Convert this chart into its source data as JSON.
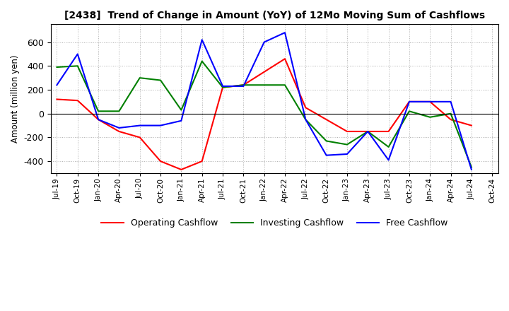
{
  "title": "[2438]  Trend of Change in Amount (YoY) of 12Mo Moving Sum of Cashflows",
  "ylabel": "Amount (million yen)",
  "x_labels": [
    "Jul-19",
    "Oct-19",
    "Jan-20",
    "Apr-20",
    "Jul-20",
    "Oct-20",
    "Jan-21",
    "Apr-21",
    "Jul-21",
    "Oct-21",
    "Jan-22",
    "Apr-22",
    "Jul-22",
    "Oct-22",
    "Jan-23",
    "Apr-23",
    "Jul-23",
    "Oct-23",
    "Jan-24",
    "Apr-24",
    "Jul-24",
    "Oct-24"
  ],
  "operating": [
    120,
    110,
    -50,
    -150,
    -200,
    -400,
    -470,
    -400,
    220,
    240,
    350,
    460,
    50,
    -50,
    -150,
    -150,
    -150,
    100,
    100,
    -50,
    -100,
    null
  ],
  "investing": [
    390,
    400,
    20,
    20,
    300,
    280,
    30,
    440,
    220,
    240,
    240,
    240,
    -50,
    -230,
    -260,
    -150,
    -280,
    20,
    -30,
    0,
    -450,
    null
  ],
  "free": [
    240,
    500,
    -50,
    -120,
    -100,
    -100,
    -60,
    620,
    230,
    230,
    600,
    680,
    -50,
    -350,
    -340,
    -150,
    -390,
    100,
    100,
    100,
    -470,
    null
  ],
  "operating_color": "#ff0000",
  "investing_color": "#008000",
  "free_color": "#0000ff",
  "ylim": [
    -500,
    750
  ],
  "yticks": [
    -400,
    -200,
    0,
    200,
    400,
    600
  ],
  "background_color": "#ffffff",
  "grid_color": "#b0b0b0"
}
